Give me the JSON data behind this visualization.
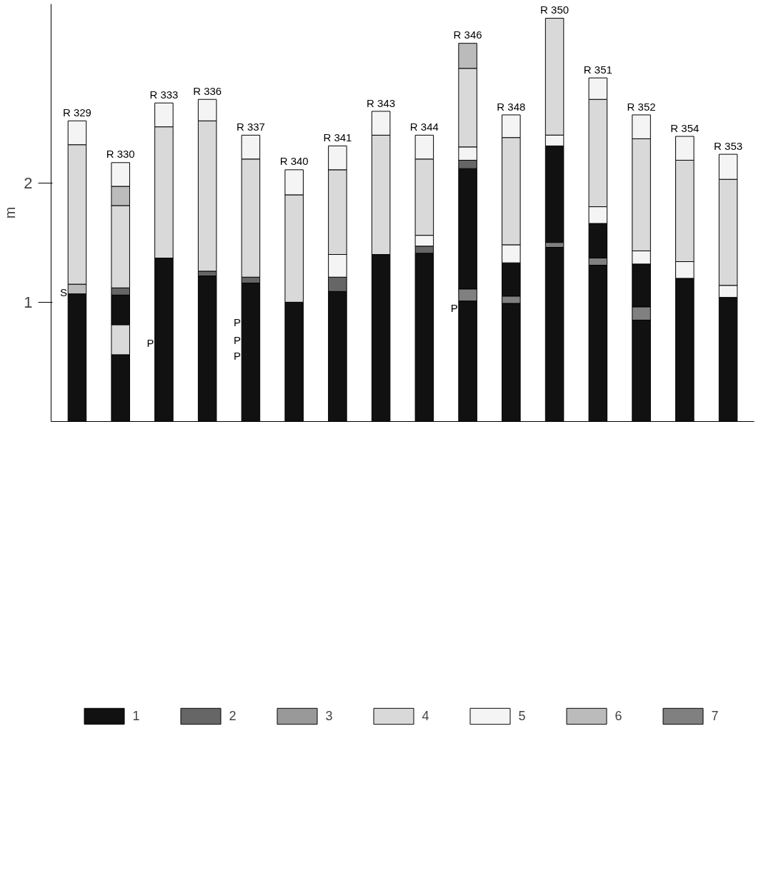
{
  "chart_data": {
    "type": "bar",
    "ylabel": "m",
    "categories": [
      "R 329",
      "R 330",
      "R 333",
      "R 336",
      "R 337",
      "R 340",
      "R 341",
      "R 343",
      "R 344",
      "R 346",
      "R 348",
      "R 350",
      "R 351",
      "R 352",
      "R 354",
      "R 353"
    ],
    "ylim": [
      0,
      3.5
    ],
    "yticks": [
      1,
      2
    ],
    "grid": false,
    "legend": "bottom",
    "series": [
      {
        "name": "1",
        "color": "#111111",
        "values": [
          1.07,
          0.56,
          1.37,
          1.22,
          1.16,
          1.0,
          1.09,
          1.4,
          1.41,
          1.01,
          0.99,
          1.46,
          1.31,
          0.85,
          1.2,
          1.04
        ],
        "base": [
          0,
          0,
          0,
          0,
          0,
          0,
          0,
          0,
          0,
          0,
          0,
          0,
          0,
          0,
          0,
          0
        ]
      },
      {
        "color": "#111111",
        "values": [
          null,
          0.25,
          null,
          null,
          null,
          null,
          null,
          null,
          null,
          1.01,
          0.28,
          0.81,
          0.29,
          0.36,
          null,
          null
        ],
        "base": [
          null,
          0.81,
          null,
          null,
          null,
          null,
          null,
          null,
          null,
          1.11,
          1.05,
          1.5,
          1.37,
          0.96,
          null,
          null
        ]
      },
      {
        "name": "2",
        "color": "#666666",
        "values": [
          null,
          0.06,
          null,
          0.04,
          0.05,
          null,
          0.12,
          null,
          0.06,
          0.07,
          null,
          null,
          null,
          null,
          null,
          null
        ],
        "base": [
          null,
          1.06,
          null,
          1.22,
          1.16,
          null,
          1.09,
          null,
          1.41,
          2.12,
          null,
          null,
          null,
          null,
          null,
          null
        ]
      },
      {
        "name": "3",
        "color": "#999999",
        "values": [
          null,
          null,
          null,
          null,
          null,
          null,
          null,
          null,
          null,
          null,
          null,
          null,
          null,
          null,
          null,
          null
        ],
        "base": [
          null,
          null,
          null,
          null,
          null,
          null,
          null,
          null,
          null,
          null,
          null,
          null,
          null,
          null,
          null,
          null
        ]
      },
      {
        "name": "4",
        "color": "#d9d9d9",
        "values": [
          1.17,
          0.69,
          1.1,
          1.26,
          0.99,
          0.9,
          0.71,
          1.0,
          0.64,
          0.66,
          0.9,
          0.98,
          0.9,
          0.94,
          0.85,
          0.89
        ],
        "base": [
          1.15,
          1.12,
          1.37,
          1.26,
          1.21,
          1.0,
          1.4,
          1.4,
          1.56,
          2.3,
          1.48,
          2.4,
          1.8,
          1.43,
          1.34,
          1.14
        ]
      },
      {
        "color": "#d9d9d9",
        "values": [
          null,
          0.25,
          null,
          null,
          null,
          null,
          null,
          null,
          null,
          null,
          null,
          null,
          null,
          null,
          null,
          null
        ],
        "base": [
          null,
          0.56,
          null,
          null,
          null,
          null,
          null,
          null,
          null,
          null,
          null,
          null,
          null,
          null,
          null,
          null
        ]
      },
      {
        "name": "5",
        "color": "#f4f4f4",
        "values": [
          0.2,
          0.2,
          0.2,
          0.18,
          0.2,
          0.21,
          0.2,
          0.2,
          0.2,
          0.11,
          0.19,
          0.09,
          0.18,
          0.2,
          0.2,
          0.21
        ],
        "base": [
          2.32,
          1.97,
          2.47,
          2.52,
          2.2,
          1.9,
          2.11,
          2.4,
          2.2,
          2.19,
          2.38,
          2.31,
          2.7,
          2.37,
          2.19,
          2.03
        ]
      },
      {
        "color": "#f4f4f4",
        "values": [
          null,
          null,
          null,
          null,
          null,
          null,
          0.19,
          null,
          0.09,
          null,
          0.15,
          null,
          0.14,
          0.11,
          0.14,
          0.1
        ],
        "base": [
          null,
          null,
          null,
          null,
          null,
          null,
          1.21,
          null,
          1.47,
          null,
          1.33,
          null,
          1.66,
          1.32,
          1.2,
          1.04
        ]
      },
      {
        "name": "6",
        "color": "#bbbbbb",
        "values": [
          0.08,
          0.16,
          null,
          null,
          null,
          null,
          null,
          null,
          null,
          0.21,
          null,
          null,
          null,
          null,
          null,
          null
        ],
        "base": [
          1.07,
          1.81,
          null,
          null,
          null,
          null,
          null,
          null,
          null,
          2.96,
          null,
          null,
          null,
          null,
          null,
          null
        ]
      },
      {
        "name": "7",
        "color": "#808080",
        "values": [
          null,
          null,
          null,
          null,
          null,
          null,
          null,
          null,
          null,
          0.1,
          0.06,
          0.04,
          0.06,
          0.11,
          null,
          null
        ],
        "base": [
          null,
          null,
          null,
          null,
          null,
          null,
          null,
          null,
          null,
          1.01,
          0.99,
          1.46,
          1.31,
          0.85,
          null,
          null
        ]
      }
    ],
    "annotations": [
      "S",
      "P",
      "P",
      "P",
      "P",
      "P"
    ]
  }
}
